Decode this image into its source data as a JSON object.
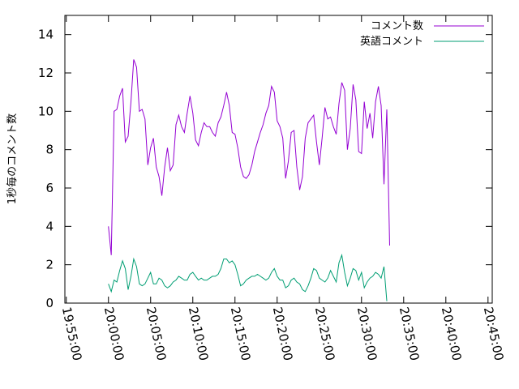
{
  "chart_data": {
    "type": "line",
    "title": "",
    "xlabel": "",
    "ylabel": "1秒毎のコメント数",
    "xlim": [
      "19:54:50",
      "20:45:30"
    ],
    "ylim": [
      0,
      15
    ],
    "x_ticks": [
      "19:55:00",
      "20:00:00",
      "20:05:00",
      "20:10:00",
      "20:15:00",
      "20:20:00",
      "20:25:00",
      "20:30:00",
      "20:35:00",
      "20:40:00",
      "20:45:00"
    ],
    "y_ticks": [
      "0",
      "2",
      "4",
      "6",
      "8",
      "10",
      "12",
      "14"
    ],
    "grid": false,
    "legend_position": "top-right",
    "colors": {
      "コメント数": "#9400d3",
      "英語コメント": "#009e73"
    },
    "series": [
      {
        "name": "コメント数",
        "points": [
          [
            "20:00:00",
            4.0
          ],
          [
            "20:00:20",
            2.5
          ],
          [
            "20:00:40",
            10.0
          ],
          [
            "20:01:00",
            10.1
          ],
          [
            "20:01:20",
            10.8
          ],
          [
            "20:01:40",
            11.2
          ],
          [
            "20:02:00",
            8.4
          ],
          [
            "20:02:20",
            8.7
          ],
          [
            "20:02:40",
            10.5
          ],
          [
            "20:03:00",
            12.7
          ],
          [
            "20:03:20",
            12.3
          ],
          [
            "20:03:40",
            10.0
          ],
          [
            "20:04:00",
            10.1
          ],
          [
            "20:04:20",
            9.6
          ],
          [
            "20:04:40",
            7.2
          ],
          [
            "20:05:00",
            8.1
          ],
          [
            "20:05:20",
            8.6
          ],
          [
            "20:05:40",
            7.1
          ],
          [
            "20:06:00",
            6.6
          ],
          [
            "20:06:20",
            5.6
          ],
          [
            "20:06:40",
            7.1
          ],
          [
            "20:07:00",
            8.1
          ],
          [
            "20:07:20",
            6.9
          ],
          [
            "20:07:40",
            7.2
          ],
          [
            "20:08:00",
            9.3
          ],
          [
            "20:08:20",
            9.8
          ],
          [
            "20:08:40",
            9.2
          ],
          [
            "20:09:00",
            8.9
          ],
          [
            "20:09:20",
            9.9
          ],
          [
            "20:09:40",
            10.8
          ],
          [
            "20:10:00",
            9.9
          ],
          [
            "20:10:20",
            8.5
          ],
          [
            "20:10:40",
            8.2
          ],
          [
            "20:11:00",
            8.9
          ],
          [
            "20:11:20",
            9.4
          ],
          [
            "20:11:40",
            9.2
          ],
          [
            "20:12:00",
            9.2
          ],
          [
            "20:12:20",
            8.9
          ],
          [
            "20:12:40",
            8.7
          ],
          [
            "20:13:00",
            9.4
          ],
          [
            "20:13:20",
            9.7
          ],
          [
            "20:13:40",
            10.3
          ],
          [
            "20:14:00",
            11.0
          ],
          [
            "20:14:20",
            10.3
          ],
          [
            "20:14:40",
            8.9
          ],
          [
            "20:15:00",
            8.8
          ],
          [
            "20:15:20",
            8.1
          ],
          [
            "20:15:40",
            7.1
          ],
          [
            "20:16:00",
            6.6
          ],
          [
            "20:16:20",
            6.5
          ],
          [
            "20:16:40",
            6.7
          ],
          [
            "20:17:00",
            7.2
          ],
          [
            "20:17:20",
            7.9
          ],
          [
            "20:17:40",
            8.4
          ],
          [
            "20:18:00",
            8.9
          ],
          [
            "20:18:20",
            9.3
          ],
          [
            "20:18:40",
            9.9
          ],
          [
            "20:19:00",
            10.3
          ],
          [
            "20:19:20",
            11.3
          ],
          [
            "20:19:40",
            11.0
          ],
          [
            "20:20:00",
            9.5
          ],
          [
            "20:20:20",
            9.2
          ],
          [
            "20:20:40",
            8.6
          ],
          [
            "20:21:00",
            6.5
          ],
          [
            "20:21:20",
            7.4
          ],
          [
            "20:21:40",
            8.9
          ],
          [
            "20:22:00",
            9.0
          ],
          [
            "20:22:20",
            7.1
          ],
          [
            "20:22:40",
            5.9
          ],
          [
            "20:23:00",
            6.6
          ],
          [
            "20:23:20",
            8.6
          ],
          [
            "20:23:40",
            9.4
          ],
          [
            "20:24:00",
            9.6
          ],
          [
            "20:24:20",
            9.8
          ],
          [
            "20:24:40",
            8.4
          ],
          [
            "20:25:00",
            7.2
          ],
          [
            "20:25:20",
            8.6
          ],
          [
            "20:25:40",
            10.2
          ],
          [
            "20:26:00",
            9.6
          ],
          [
            "20:26:20",
            9.7
          ],
          [
            "20:26:40",
            9.2
          ],
          [
            "20:27:00",
            8.8
          ],
          [
            "20:27:20",
            10.4
          ],
          [
            "20:27:40",
            11.5
          ],
          [
            "20:28:00",
            11.1
          ],
          [
            "20:28:20",
            8.0
          ],
          [
            "20:28:40",
            9.1
          ],
          [
            "20:29:00",
            11.4
          ],
          [
            "20:29:20",
            10.6
          ],
          [
            "20:29:40",
            7.9
          ],
          [
            "20:30:00",
            7.8
          ],
          [
            "20:30:20",
            10.5
          ],
          [
            "20:30:40",
            9.1
          ],
          [
            "20:31:00",
            9.9
          ],
          [
            "20:31:20",
            8.6
          ],
          [
            "20:31:40",
            10.5
          ],
          [
            "20:32:00",
            11.3
          ],
          [
            "20:32:20",
            10.3
          ],
          [
            "20:32:40",
            6.2
          ],
          [
            "20:33:00",
            10.1
          ],
          [
            "20:33:20",
            3.0
          ]
        ]
      },
      {
        "name": "英語コメント",
        "points": [
          [
            "20:00:00",
            1.0
          ],
          [
            "20:00:20",
            0.6
          ],
          [
            "20:00:40",
            1.2
          ],
          [
            "20:01:00",
            1.1
          ],
          [
            "20:01:20",
            1.7
          ],
          [
            "20:01:40",
            2.2
          ],
          [
            "20:02:00",
            1.8
          ],
          [
            "20:02:20",
            0.7
          ],
          [
            "20:02:40",
            1.4
          ],
          [
            "20:03:00",
            2.3
          ],
          [
            "20:03:20",
            1.9
          ],
          [
            "20:03:40",
            1.0
          ],
          [
            "20:04:00",
            0.9
          ],
          [
            "20:04:20",
            1.0
          ],
          [
            "20:04:40",
            1.3
          ],
          [
            "20:05:00",
            1.6
          ],
          [
            "20:05:20",
            1.0
          ],
          [
            "20:05:40",
            1.0
          ],
          [
            "20:06:00",
            1.3
          ],
          [
            "20:06:20",
            1.2
          ],
          [
            "20:06:40",
            0.9
          ],
          [
            "20:07:00",
            0.8
          ],
          [
            "20:07:20",
            0.9
          ],
          [
            "20:07:40",
            1.1
          ],
          [
            "20:08:00",
            1.2
          ],
          [
            "20:08:20",
            1.4
          ],
          [
            "20:08:40",
            1.3
          ],
          [
            "20:09:00",
            1.2
          ],
          [
            "20:09:20",
            1.2
          ],
          [
            "20:09:40",
            1.5
          ],
          [
            "20:10:00",
            1.6
          ],
          [
            "20:10:20",
            1.4
          ],
          [
            "20:10:40",
            1.2
          ],
          [
            "20:11:00",
            1.3
          ],
          [
            "20:11:20",
            1.2
          ],
          [
            "20:11:40",
            1.2
          ],
          [
            "20:12:00",
            1.3
          ],
          [
            "20:12:20",
            1.4
          ],
          [
            "20:12:40",
            1.4
          ],
          [
            "20:13:00",
            1.5
          ],
          [
            "20:13:20",
            1.8
          ],
          [
            "20:13:40",
            2.3
          ],
          [
            "20:14:00",
            2.3
          ],
          [
            "20:14:20",
            2.1
          ],
          [
            "20:14:40",
            2.2
          ],
          [
            "20:15:00",
            2.0
          ],
          [
            "20:15:20",
            1.5
          ],
          [
            "20:15:40",
            0.9
          ],
          [
            "20:16:00",
            1.0
          ],
          [
            "20:16:20",
            1.2
          ],
          [
            "20:16:40",
            1.3
          ],
          [
            "20:17:00",
            1.4
          ],
          [
            "20:17:20",
            1.4
          ],
          [
            "20:17:40",
            1.5
          ],
          [
            "20:18:00",
            1.4
          ],
          [
            "20:18:20",
            1.3
          ],
          [
            "20:18:40",
            1.2
          ],
          [
            "20:19:00",
            1.3
          ],
          [
            "20:19:20",
            1.6
          ],
          [
            "20:19:40",
            1.8
          ],
          [
            "20:20:00",
            1.4
          ],
          [
            "20:20:20",
            1.2
          ],
          [
            "20:20:40",
            1.2
          ],
          [
            "20:21:00",
            0.8
          ],
          [
            "20:21:20",
            0.9
          ],
          [
            "20:21:40",
            1.2
          ],
          [
            "20:22:00",
            1.3
          ],
          [
            "20:22:20",
            1.1
          ],
          [
            "20:22:40",
            1.0
          ],
          [
            "20:23:00",
            0.7
          ],
          [
            "20:23:20",
            0.6
          ],
          [
            "20:23:40",
            0.9
          ],
          [
            "20:24:00",
            1.3
          ],
          [
            "20:24:20",
            1.8
          ],
          [
            "20:24:40",
            1.7
          ],
          [
            "20:25:00",
            1.3
          ],
          [
            "20:25:20",
            1.2
          ],
          [
            "20:25:40",
            1.1
          ],
          [
            "20:26:00",
            1.3
          ],
          [
            "20:26:20",
            1.7
          ],
          [
            "20:26:40",
            1.4
          ],
          [
            "20:27:00",
            1.1
          ],
          [
            "20:27:20",
            2.1
          ],
          [
            "20:27:40",
            2.5
          ],
          [
            "20:28:00",
            1.6
          ],
          [
            "20:28:20",
            0.9
          ],
          [
            "20:28:40",
            1.3
          ],
          [
            "20:29:00",
            1.8
          ],
          [
            "20:29:20",
            1.7
          ],
          [
            "20:29:40",
            1.2
          ],
          [
            "20:30:00",
            1.6
          ],
          [
            "20:30:20",
            0.8
          ],
          [
            "20:30:40",
            1.1
          ],
          [
            "20:31:00",
            1.3
          ],
          [
            "20:31:20",
            1.4
          ],
          [
            "20:31:40",
            1.6
          ],
          [
            "20:32:00",
            1.5
          ],
          [
            "20:32:20",
            1.3
          ],
          [
            "20:32:40",
            1.9
          ],
          [
            "20:33:00",
            0.1
          ]
        ]
      }
    ]
  }
}
